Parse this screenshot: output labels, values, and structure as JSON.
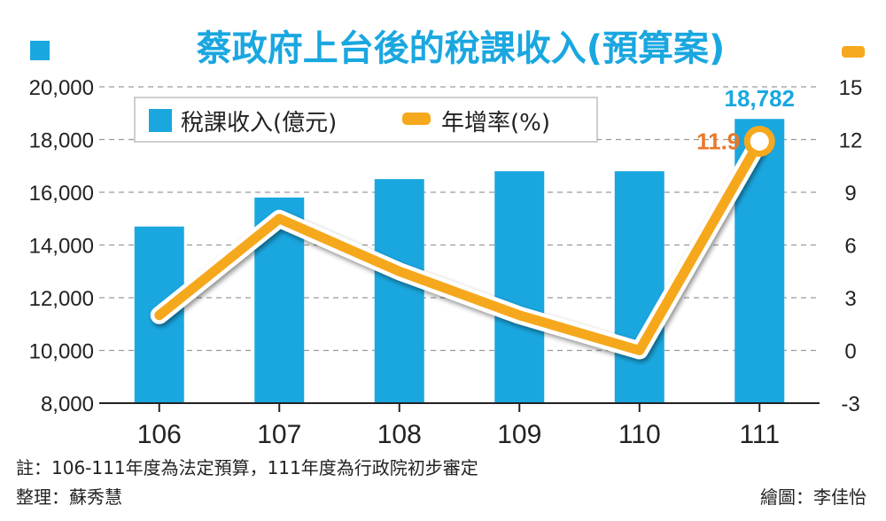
{
  "title": "蔡政府上台後的稅課收入(預算案)",
  "legend": {
    "bar_label": "稅課收入(億元)",
    "line_label": "年增率(%)"
  },
  "colors": {
    "bar": "#1aa7e0",
    "line": "#f6a81e",
    "title": "#1aa7e0",
    "bar_label": "#1aa7e0",
    "line_label": "#e8782b",
    "grid": "#9a9a9a",
    "text": "#222222"
  },
  "footnote": "註：106-111年度為法定預算，111年度為行政院初步審定",
  "compiler": "整理：蘇秀慧",
  "illustrator": "繪圖：李佳怡",
  "chart_data": {
    "type": "bar",
    "categories": [
      "106",
      "107",
      "108",
      "109",
      "110",
      "111"
    ],
    "series": [
      {
        "name": "稅課收入(億元)",
        "type": "bar",
        "axis": "left",
        "values": [
          14700,
          15800,
          16500,
          16800,
          16800,
          18782
        ]
      },
      {
        "name": "年增率(%)",
        "type": "line",
        "axis": "right",
        "values": [
          2.0,
          7.5,
          4.5,
          2.0,
          0.0,
          11.9
        ]
      }
    ],
    "annotations": {
      "bar_last_label": "18,782",
      "line_last_label": "11.9"
    },
    "y_left": {
      "lim": [
        8000,
        20000
      ],
      "ticks": [
        "8,000",
        "10,000",
        "12,000",
        "14,000",
        "16,000",
        "18,000",
        "20,000"
      ],
      "tick_values": [
        8000,
        10000,
        12000,
        14000,
        16000,
        18000,
        20000
      ]
    },
    "y_right": {
      "lim": [
        -3,
        15
      ],
      "ticks": [
        "-3",
        "0",
        "3",
        "6",
        "9",
        "12",
        "15"
      ],
      "tick_values": [
        -3,
        0,
        3,
        6,
        9,
        12,
        15
      ]
    },
    "grid": true,
    "legend_position": "top-left"
  }
}
